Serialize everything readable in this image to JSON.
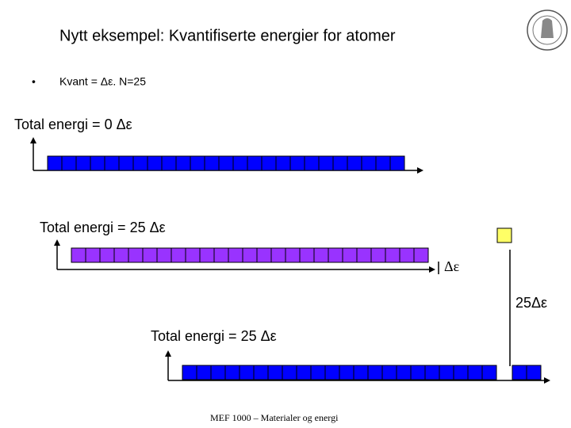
{
  "header": {
    "title": "Nytt eksempel: Kvantifiserte energier for atomer"
  },
  "bullets": [
    "Kvant = Δε. N=25"
  ],
  "diagram": {
    "labels": [
      "Total energi = 0 Δε",
      "Total energi = 25 Δε",
      "Δε",
      "25Δε",
      "Total energi = 25 Δε"
    ]
  },
  "footer": "MEF 1000 – Materialer og energi"
}
